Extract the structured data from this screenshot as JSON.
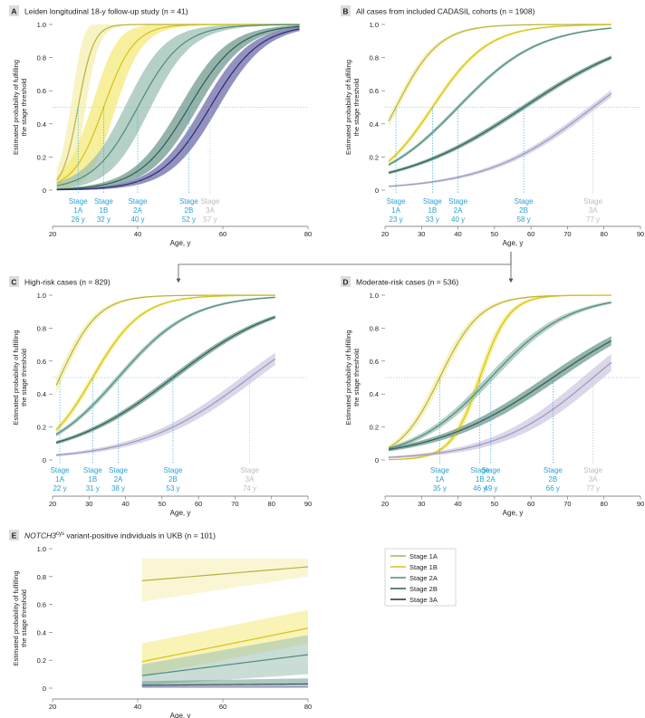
{
  "colors": {
    "stage_1A": "#b8b23c",
    "stage_1A_band": "#f6efb0",
    "stage_1B": "#d4c21a",
    "stage_1B_band": "#f4e97a",
    "stage_2A": "#4f8b7e",
    "stage_2A_band": "#9cc0b3",
    "stage_2B": "#2d5d55",
    "stage_2B_band": "#6f9a8f",
    "stage_3A_A": "#2b2a6b",
    "stage_3A_A_band": "#6e6cab",
    "stage_3A": "#9d97c0",
    "stage_3A_band": "#cfcae1",
    "stage_label": "#2aa1d3",
    "stage_label_muted": "#bdbdbd",
    "threshold_line": "#5ab4dc",
    "arrow": "#555555"
  },
  "legend": {
    "entries": [
      {
        "label": "Stage 1A",
        "color": "#b8b23c"
      },
      {
        "label": "Stage 1B",
        "color": "#d4c21a"
      },
      {
        "label": "Stage 2A",
        "color": "#4f8b7e"
      },
      {
        "label": "Stage 2B",
        "color": "#2d5d55"
      },
      {
        "label": "Stage 3A",
        "color": "#1f2f4a"
      }
    ]
  },
  "chart_data": [
    {
      "id": "A",
      "type": "line",
      "letter": "A",
      "title": "Leiden longitudinal 18-y follow-up study (n = 41)",
      "xlabel": "Age, y",
      "ylabel": [
        "Estimated probability of fulfilling",
        "the stage threshold"
      ],
      "xlim": [
        20,
        80
      ],
      "ylim": [
        0,
        1
      ],
      "xticks": [
        20,
        40,
        60,
        80
      ],
      "yticks": [
        0,
        0.2,
        0.4,
        0.6,
        0.8,
        1.0
      ],
      "threshold": 0.5,
      "series": [
        {
          "stage": "1A",
          "midpoint": 26,
          "slope": 0.55,
          "x_start": 21,
          "x_end": 78,
          "band": 0.28
        },
        {
          "stage": "1B",
          "midpoint": 32,
          "slope": 0.28,
          "x_start": 21,
          "x_end": 78,
          "band": 0.22
        },
        {
          "stage": "2A",
          "midpoint": 40,
          "slope": 0.19,
          "x_start": 21,
          "x_end": 78,
          "band": 0.15
        },
        {
          "stage": "2B",
          "midpoint": 52,
          "slope": 0.17,
          "x_start": 21,
          "x_end": 78,
          "band": 0.09
        },
        {
          "stage": "3A",
          "midpoint": 57,
          "slope": 0.17,
          "x_start": 21,
          "x_end": 78,
          "band": 0.08
        }
      ],
      "stage_labels": [
        {
          "stage": "1A",
          "age": "26 y",
          "x": 26
        },
        {
          "stage": "1B",
          "age": "32 y",
          "x": 32
        },
        {
          "stage": "2A",
          "age": "40 y",
          "x": 40
        },
        {
          "stage": "2B",
          "age": "52 y",
          "x": 52
        },
        {
          "stage": "3A",
          "age": "57 y",
          "x": 57,
          "muted": true
        }
      ]
    },
    {
      "id": "B",
      "type": "line",
      "letter": "B",
      "title": "All cases from included CADASIL cohorts (n = 1908)",
      "xlabel": "Age, y",
      "ylabel": [
        "Estimated probability of fulfilling",
        "the stage threshold"
      ],
      "xlim": [
        20,
        90
      ],
      "ylim": [
        0,
        1
      ],
      "xticks": [
        20,
        30,
        40,
        50,
        60,
        70,
        80,
        90
      ],
      "yticks": [
        0,
        0.2,
        0.4,
        0.6,
        0.8,
        1.0
      ],
      "threshold": 0.5,
      "series": [
        {
          "stage": "1A",
          "midpoint": 23,
          "slope": 0.17,
          "x_start": 21,
          "x_end": 82,
          "band": 0.03
        },
        {
          "stage": "1B",
          "midpoint": 33,
          "slope": 0.13,
          "x_start": 21,
          "x_end": 82,
          "band": 0.015
        },
        {
          "stage": "2A",
          "midpoint": 40,
          "slope": 0.09,
          "x_start": 21,
          "x_end": 82,
          "band": 0.01
        },
        {
          "stage": "2B",
          "midpoint": 58,
          "slope": 0.058,
          "x_start": 21,
          "x_end": 82,
          "band": 0.012
        },
        {
          "stage": "3A",
          "midpoint": 77,
          "slope": 0.067,
          "x_start": 21,
          "x_end": 82,
          "band": 0.018
        }
      ],
      "stage_labels": [
        {
          "stage": "1A",
          "age": "23 y",
          "x": 23
        },
        {
          "stage": "1B",
          "age": "33 y",
          "x": 33
        },
        {
          "stage": "2A",
          "age": "40 y",
          "x": 40
        },
        {
          "stage": "2B",
          "age": "58 y",
          "x": 58
        },
        {
          "stage": "3A",
          "age": "77 y",
          "x": 77,
          "muted": true
        }
      ]
    },
    {
      "id": "C",
      "type": "line",
      "letter": "C",
      "title": "High-risk cases (n = 829)",
      "xlabel": "Age, y",
      "ylabel": [
        "Estimated probability of fulfilling",
        "the stage threshold"
      ],
      "xlim": [
        20,
        90
      ],
      "ylim": [
        0,
        1
      ],
      "xticks": [
        20,
        30,
        40,
        50,
        60,
        70,
        80,
        90
      ],
      "yticks": [
        0,
        0.2,
        0.4,
        0.6,
        0.8,
        1.0
      ],
      "threshold": 0.5,
      "series": [
        {
          "stage": "1A",
          "midpoint": 22,
          "slope": 0.19,
          "x_start": 21,
          "x_end": 81,
          "band": 0.04
        },
        {
          "stage": "1B",
          "midpoint": 31,
          "slope": 0.15,
          "x_start": 21,
          "x_end": 81,
          "band": 0.02
        },
        {
          "stage": "2A",
          "midpoint": 38,
          "slope": 0.1,
          "x_start": 21,
          "x_end": 81,
          "band": 0.015
        },
        {
          "stage": "2B",
          "midpoint": 53,
          "slope": 0.067,
          "x_start": 21,
          "x_end": 81,
          "band": 0.015
        },
        {
          "stage": "3A",
          "midpoint": 74,
          "slope": 0.066,
          "x_start": 21,
          "x_end": 81,
          "band": 0.035
        }
      ],
      "stage_labels": [
        {
          "stage": "1A",
          "age": "22 y",
          "x": 22
        },
        {
          "stage": "1B",
          "age": "31 y",
          "x": 31
        },
        {
          "stage": "2A",
          "age": "38 y",
          "x": 38
        },
        {
          "stage": "2B",
          "age": "53 y",
          "x": 53
        },
        {
          "stage": "3A",
          "age": "74 y",
          "x": 74,
          "muted": true
        }
      ]
    },
    {
      "id": "D",
      "type": "line",
      "letter": "D",
      "title": "Moderate-risk cases (n = 536)",
      "xlabel": "Age, y",
      "ylabel": [
        "Estimated probability of fulfilling",
        "the stage threshold"
      ],
      "xlim": [
        20,
        90
      ],
      "ylim": [
        0,
        1
      ],
      "xticks": [
        20,
        30,
        40,
        50,
        60,
        70,
        80,
        90
      ],
      "yticks": [
        0,
        0.2,
        0.4,
        0.6,
        0.8,
        1.0
      ],
      "threshold": 0.5,
      "series": [
        {
          "stage": "1A",
          "midpoint": 35,
          "slope": 0.18,
          "x_start": 21,
          "x_end": 82,
          "band": 0.04
        },
        {
          "stage": "1B",
          "midpoint": 46,
          "slope": 0.25,
          "x_start": 21,
          "x_end": 82,
          "band": 0.04
        },
        {
          "stage": "2A",
          "midpoint": 49,
          "slope": 0.093,
          "x_start": 21,
          "x_end": 82,
          "band": 0.025
        },
        {
          "stage": "2B",
          "midpoint": 66,
          "slope": 0.06,
          "x_start": 21,
          "x_end": 82,
          "band": 0.03
        },
        {
          "stage": "3A",
          "midpoint": 77,
          "slope": 0.074,
          "x_start": 21,
          "x_end": 82,
          "band": 0.05
        }
      ],
      "stage_labels": [
        {
          "stage": "1A",
          "age": "35 y",
          "x": 35
        },
        {
          "stage": "1B",
          "age": "46 y",
          "x": 46
        },
        {
          "stage": "2A",
          "age": "49 y",
          "x": 49
        },
        {
          "stage": "2B",
          "age": "66 y",
          "x": 66
        },
        {
          "stage": "3A",
          "age": "77 y",
          "x": 77,
          "muted": true
        }
      ]
    },
    {
      "id": "E",
      "type": "line",
      "letter": "E",
      "title_prefix": "NOTCH3",
      "title_superscript": "cys",
      "title_suffix": " variant-positive individuals in UKB (n = 101)",
      "xlabel": "Age, y",
      "ylabel": [
        "Estimated probability of fulfilling",
        "the stage threshold"
      ],
      "xlim": [
        20,
        80
      ],
      "ylim": [
        0,
        1
      ],
      "xticks": [
        20,
        40,
        60,
        80
      ],
      "yticks": [
        0,
        0.2,
        0.4,
        0.6,
        0.8,
        1.0
      ],
      "series": [
        {
          "stage": "1A",
          "x": [
            41,
            80
          ],
          "y": [
            0.77,
            0.87
          ],
          "lo": [
            0.62,
            0.8
          ],
          "hi": [
            0.93,
            0.93
          ]
        },
        {
          "stage": "1B",
          "x": [
            41,
            80
          ],
          "y": [
            0.19,
            0.43
          ],
          "lo": [
            0.09,
            0.32
          ],
          "hi": [
            0.32,
            0.56
          ]
        },
        {
          "stage": "2A",
          "x": [
            41,
            80
          ],
          "y": [
            0.09,
            0.24
          ],
          "lo": [
            0.02,
            0.1
          ],
          "hi": [
            0.17,
            0.38
          ]
        },
        {
          "stage": "2B",
          "x": [
            41,
            80
          ],
          "y": [
            0.02,
            0.03
          ],
          "lo": [
            0.0,
            0.0
          ],
          "hi": [
            0.05,
            0.07
          ]
        },
        {
          "stage": "3A",
          "x": [
            41,
            80
          ],
          "y": [
            0.01,
            0.01
          ],
          "lo": [
            0.0,
            0.0
          ],
          "hi": [
            0.02,
            0.03
          ]
        }
      ]
    }
  ]
}
